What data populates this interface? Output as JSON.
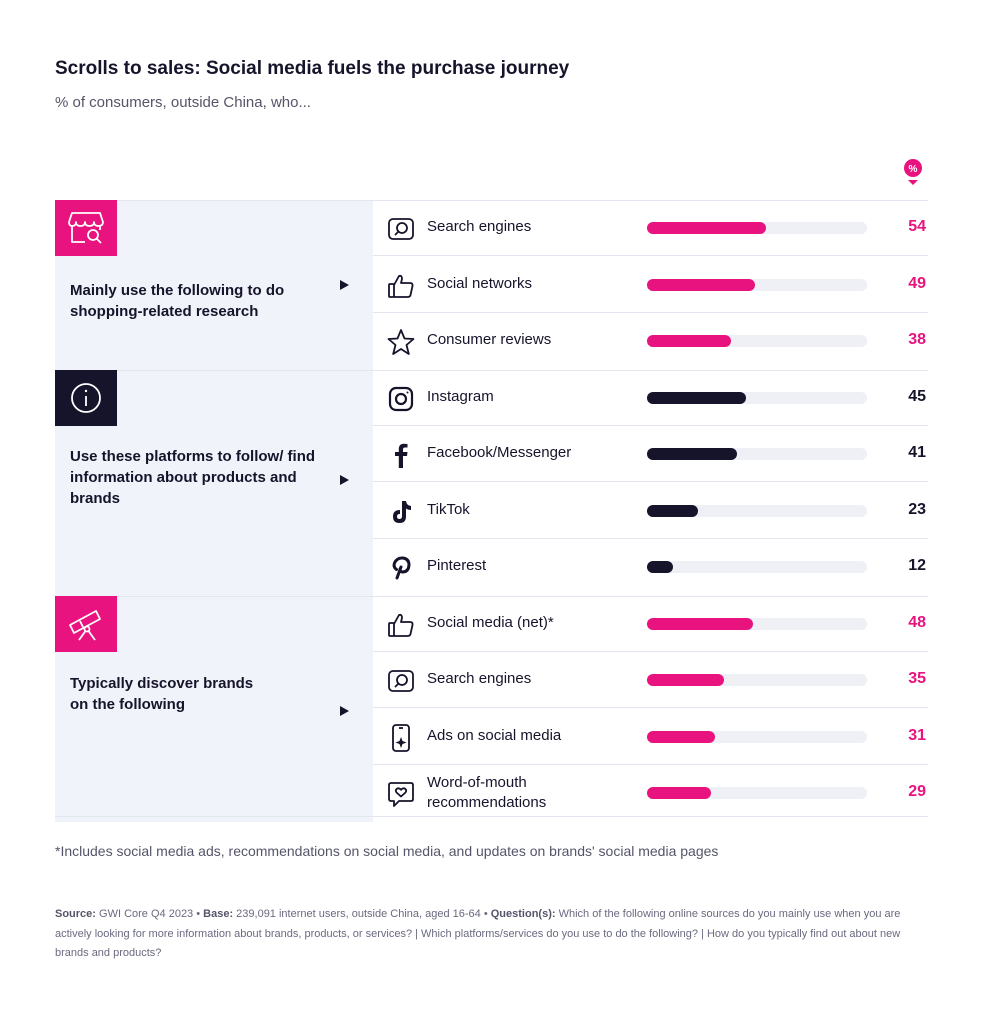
{
  "title": "Scrolls to sales: Social media fuels the purchase journey",
  "subtitle": "% of consumers, outside China, who...",
  "pct_badge": "%",
  "colors": {
    "pink": "#e8137e",
    "navy": "#15142b",
    "track": "#eef0f6",
    "panel": "#f1f3fa"
  },
  "chart_data": {
    "type": "bar",
    "orientation": "horizontal",
    "unit": "%",
    "xlim": [
      0,
      100
    ],
    "groups": [
      {
        "label": "Mainly use the following to do shopping-related research",
        "icon": "store-search-icon",
        "color": "#e8137e",
        "items": [
          {
            "label": "Search engines",
            "icon": "search-icon",
            "value": 54
          },
          {
            "label": "Social networks",
            "icon": "thumbs-up-icon",
            "value": 49
          },
          {
            "label": "Consumer reviews",
            "icon": "star-icon",
            "value": 38
          }
        ]
      },
      {
        "label": "Use these platforms to follow/ find information about products and brands",
        "icon": "info-icon",
        "color": "#15142b",
        "items": [
          {
            "label": "Instagram",
            "icon": "instagram-icon",
            "value": 45
          },
          {
            "label": "Facebook/Messenger",
            "icon": "facebook-icon",
            "value": 41
          },
          {
            "label": "TikTok",
            "icon": "tiktok-icon",
            "value": 23
          },
          {
            "label": "Pinterest",
            "icon": "pinterest-icon",
            "value": 12
          }
        ]
      },
      {
        "label": "Typically discover brands on the following",
        "icon": "telescope-icon",
        "color": "#e8137e",
        "items": [
          {
            "label": "Social media (net)*",
            "icon": "thumbs-up-icon",
            "value": 48
          },
          {
            "label": "Search engines",
            "icon": "search-icon",
            "value": 35
          },
          {
            "label": "Ads on social media",
            "icon": "phone-sparkle-icon",
            "value": 31
          },
          {
            "label": "Word-of-mouth recommendations",
            "icon": "chat-heart-icon",
            "value": 29
          }
        ]
      }
    ]
  },
  "footnote": "*Includes social media ads, recommendations on social media, and updates on brands' social media pages",
  "source": {
    "source_label": "Source:",
    "source_text": " GWI Core Q4 2023 • ",
    "base_label": "Base:",
    "base_text": " 239,091 internet users, outside China, aged 16-64 • ",
    "question_label": "Question(s):",
    "question_text": " Which of the following online sources do you mainly use when you are actively looking for more information about brands, products, or services? | Which platforms/services do you use to do the following? | How do you typically find out about new brands and products?"
  }
}
